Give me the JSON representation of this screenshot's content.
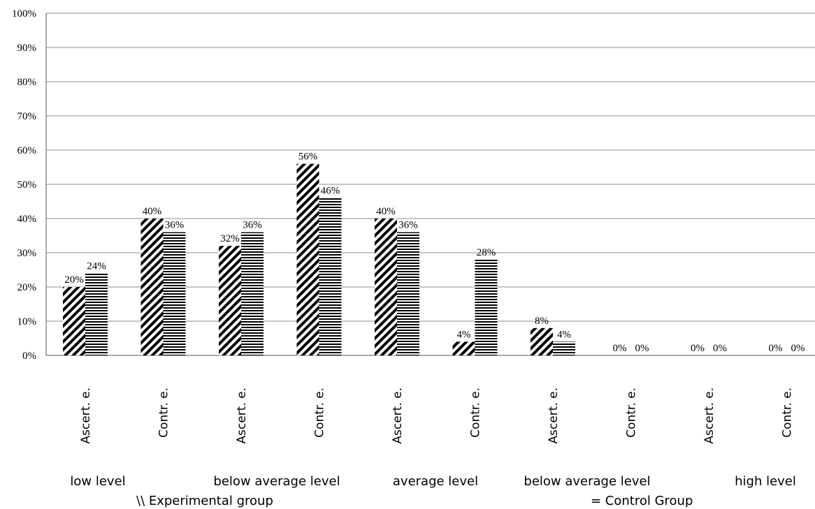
{
  "chart_data": {
    "type": "bar",
    "categories": [
      "Ascert. e.",
      "Contr. e.",
      "Ascert. e.",
      "Contr. e.",
      "Ascert. e.",
      "Contr. e.",
      "Ascert. e.",
      "Contr. e.",
      "Ascert. e.",
      "Contr. e."
    ],
    "series": [
      {
        "values": [
          20,
          40,
          32,
          56,
          40,
          4,
          8,
          0,
          0,
          0
        ],
        "labels": [
          "20%",
          "40%",
          "32%",
          "56%",
          "40%",
          "4%",
          "8%",
          "0%",
          "0%",
          "0%"
        ],
        "pattern": "diagonal-hatch"
      },
      {
        "values": [
          24,
          36,
          36,
          46,
          36,
          28,
          4,
          0,
          0,
          0
        ],
        "labels": [
          "24%",
          "36%",
          "36%",
          "46%",
          "36%",
          "28%",
          "4%",
          "0%",
          "0%",
          "0%"
        ],
        "pattern": "horizontal-hatch"
      }
    ],
    "groups": [
      "low level",
      "below average level",
      "average level",
      "below average level",
      "high level"
    ],
    "legend": [
      "\\\\ Experimental group",
      "= Control Group"
    ],
    "yticks": [
      "0%",
      "10%",
      "20%",
      "30%",
      "40%",
      "50%",
      "60%",
      "70%",
      "80%",
      "90%",
      "100%"
    ],
    "ylim": [
      0,
      100
    ],
    "grid": true,
    "colors": {
      "bar": "#000000",
      "grid": "#8c8c8c",
      "axis": "#555555"
    }
  }
}
